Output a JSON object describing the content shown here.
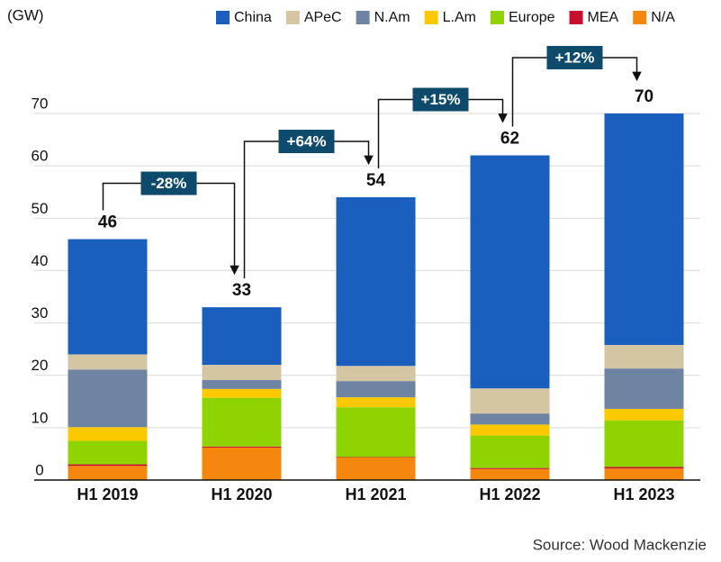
{
  "chart_data": {
    "type": "stacked_bar",
    "y_label": "(GW)",
    "source": "Source: Wood Mackenzie",
    "categories": [
      "H1 2019",
      "H1 2020",
      "H1 2021",
      "H1 2022",
      "H1 2023"
    ],
    "series": [
      {
        "name": "N/A",
        "color": "#f5870f",
        "values": [
          2.7,
          6.2,
          4.3,
          2.1,
          2.2
        ]
      },
      {
        "name": "MEA",
        "color": "#c8102e",
        "values": [
          0.3,
          0.2,
          0.1,
          0.2,
          0.3
        ]
      },
      {
        "name": "Europe",
        "color": "#8fd400",
        "values": [
          4.5,
          9.3,
          9.5,
          6.2,
          8.9
        ]
      },
      {
        "name": "L.Am",
        "color": "#fcc800",
        "values": [
          2.6,
          1.7,
          1.9,
          2.1,
          2.2
        ]
      },
      {
        "name": "N.Am",
        "color": "#6f84a3",
        "values": [
          11,
          1.7,
          3.1,
          2.1,
          7.7
        ]
      },
      {
        "name": "APeC",
        "color": "#d5c6a3",
        "values": [
          2.9,
          2.9,
          2.9,
          4.8,
          4.5
        ]
      },
      {
        "name": "China",
        "color": "#1a5fbe",
        "values": [
          22,
          11,
          32.2,
          44.5,
          44.2
        ]
      }
    ],
    "legend_order": [
      6,
      5,
      4,
      3,
      2,
      1,
      0
    ],
    "totals": [
      46,
      33,
      54,
      62,
      70
    ],
    "growth_labels": [
      "-28%",
      "+64%",
      "+15%",
      "+12%"
    ],
    "ylim": [
      0,
      70
    ],
    "yticks": [
      0,
      10,
      20,
      30,
      40,
      50,
      60,
      70
    ],
    "grid": true
  }
}
